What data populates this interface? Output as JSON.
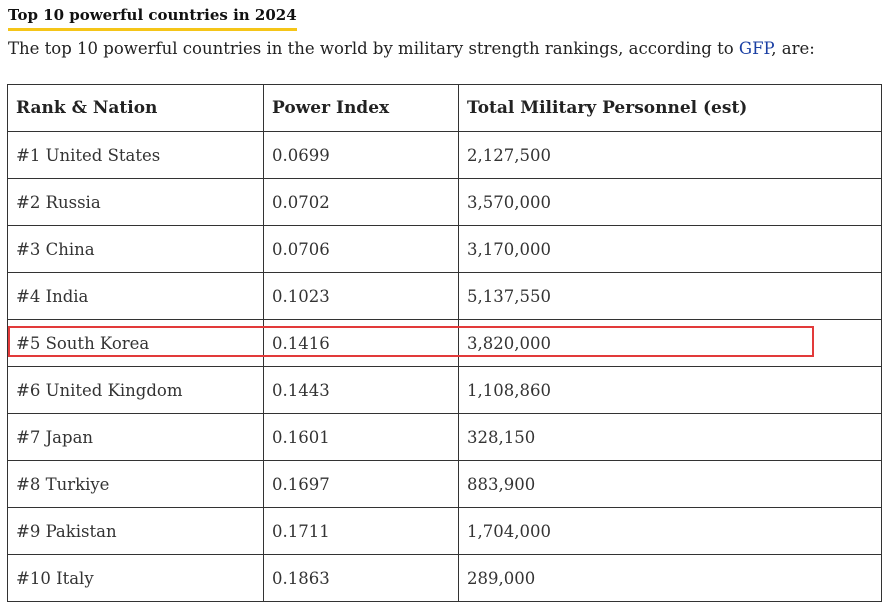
{
  "heading": "Top 10 powerful countries in 2024",
  "intro": {
    "before": "The top 10 powerful countries in the world by military strength rankings, according to ",
    "link": "GFP",
    "after": ", are:"
  },
  "table": {
    "headers": [
      "Rank & Nation",
      "Power Index",
      "Total Military Personnel (est)"
    ],
    "rows": [
      [
        "#1 United States",
        "0.0699",
        "2,127,500"
      ],
      [
        "#2 Russia",
        "0.0702",
        "3,570,000"
      ],
      [
        "#3 China",
        "0.0706",
        "3,170,000"
      ],
      [
        "#4 India",
        "0.1023",
        "5,137,550"
      ],
      [
        "#5 South Korea",
        "0.1416",
        "3,820,000"
      ],
      [
        "#6 United Kingdom",
        "0.1443",
        "1,108,860"
      ],
      [
        "#7 Japan",
        "0.1601",
        "328,150"
      ],
      [
        "#8 Turkiye",
        "0.1697",
        "883,900"
      ],
      [
        "#9 Pakistan",
        "0.1711",
        "1,704,000"
      ],
      [
        "#10 Italy",
        "0.1863",
        "289,000"
      ]
    ]
  },
  "colors": {
    "heading_underline": "#f5c518",
    "link": "#1a3fa3",
    "highlight": "#e23a3a",
    "border": "#333333"
  }
}
